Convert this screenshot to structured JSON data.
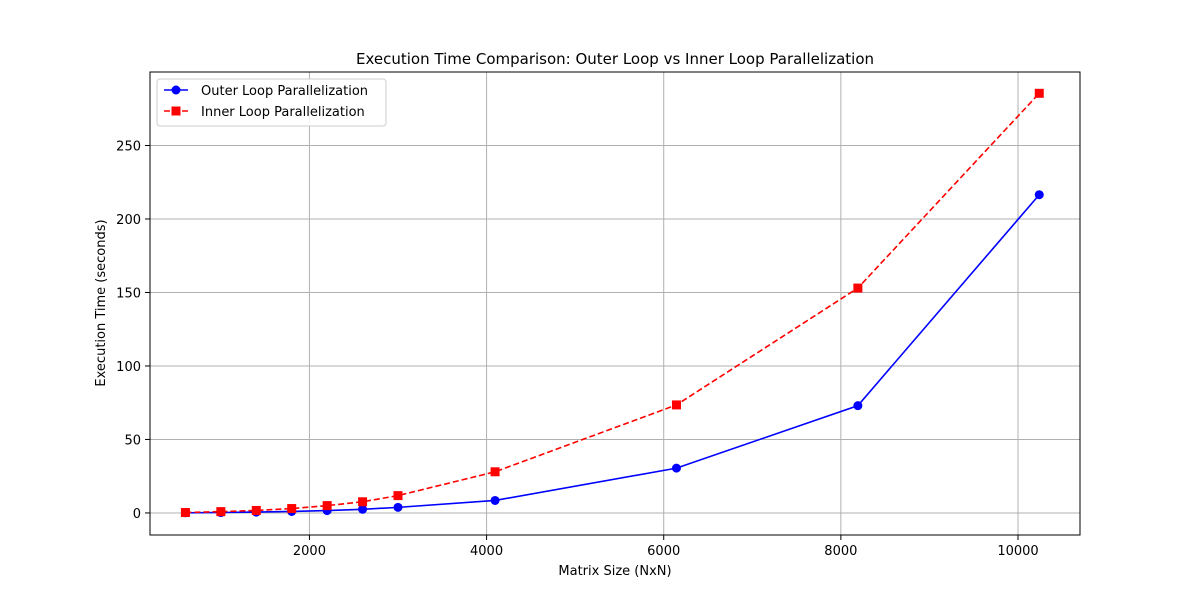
{
  "chart_data": {
    "type": "line",
    "title": "Execution Time Comparison: Outer Loop vs Inner Loop Parallelization",
    "xlabel": "Matrix Size (NxN)",
    "ylabel": "Execution Time (seconds)",
    "xlim": [
      200,
      10700
    ],
    "ylim": [
      -15,
      300
    ],
    "xticks": [
      2000,
      4000,
      6000,
      8000,
      10000
    ],
    "yticks": [
      0,
      50,
      100,
      150,
      200,
      250
    ],
    "grid": true,
    "legend_position": "top-left",
    "x": [
      600,
      1000,
      1400,
      1800,
      2200,
      2600,
      3000,
      4096,
      6144,
      8192,
      10240
    ],
    "series": [
      {
        "name": "Outer Loop Parallelization",
        "color": "#0000ff",
        "linestyle": "solid",
        "marker": "circle",
        "values": [
          0.1,
          0.3,
          0.6,
          1.0,
          1.6,
          2.5,
          3.8,
          8.5,
          30.5,
          73.0,
          216.5
        ]
      },
      {
        "name": "Inner Loop Parallelization",
        "color": "#ff0000",
        "linestyle": "dashed",
        "marker": "square",
        "values": [
          0.3,
          0.9,
          1.7,
          3.0,
          5.0,
          7.6,
          11.8,
          28.0,
          73.5,
          153.0,
          285.5
        ]
      }
    ]
  }
}
